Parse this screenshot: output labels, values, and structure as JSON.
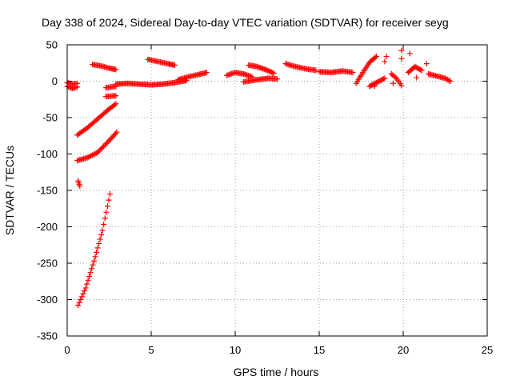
{
  "chart_data": {
    "type": "scatter",
    "title": "Day 338 of 2024, Sidereal Day-to-day VTEC variation (SDTVAR) for receiver seyg",
    "xlabel": "GPS time / hours",
    "ylabel": "SDTVAR / TECUs",
    "xlim": [
      0,
      25
    ],
    "ylim": [
      -350,
      50
    ],
    "xticks": [
      0,
      5,
      10,
      15,
      20,
      25
    ],
    "yticks": [
      -350,
      -300,
      -250,
      -200,
      -150,
      -100,
      -50,
      0,
      50
    ],
    "xtick_labels": [
      "0",
      "5",
      "10",
      "15",
      "20",
      "25"
    ],
    "ytick_labels": [
      "-350",
      "-300",
      "-250",
      "-200",
      "-150",
      "-100",
      "-50",
      "0",
      "50"
    ],
    "grid": true,
    "marker": "+",
    "color": "#ff0000",
    "segments": [
      {
        "x": [
          0.0,
          0.3,
          0.6
        ],
        "y": [
          -7,
          -10,
          -8
        ]
      },
      {
        "x": [
          0.0,
          0.3,
          0.6
        ],
        "y": [
          -2,
          -4,
          -3
        ]
      },
      {
        "x": [
          0.6,
          1.2,
          1.8,
          2.4,
          2.9
        ],
        "y": [
          -74,
          -64,
          -52,
          -40,
          -31
        ]
      },
      {
        "x": [
          0.6,
          1.2,
          1.8,
          2.4,
          2.95
        ],
        "y": [
          -109,
          -105,
          -98,
          -84,
          -70
        ]
      },
      {
        "x": [
          0.65,
          0.75
        ],
        "y": [
          -137,
          -144
        ]
      },
      {
        "x": [
          0.65,
          1.1,
          1.6,
          2.1,
          2.55
        ],
        "y": [
          -308,
          -284,
          -247,
          -205,
          -155
        ]
      },
      {
        "x": [
          1.5,
          2.0,
          2.5,
          2.9
        ],
        "y": [
          23,
          21,
          18,
          16
        ]
      },
      {
        "x": [
          2.3,
          2.9
        ],
        "y": [
          -9,
          -7
        ]
      },
      {
        "x": [
          2.3,
          2.9
        ],
        "y": [
          -21,
          -20
        ]
      },
      {
        "x": [
          2.9,
          3.6,
          4.3,
          5.0,
          5.7,
          6.4,
          7.1
        ],
        "y": [
          -4,
          -3,
          -4,
          -5,
          -4,
          -2,
          1
        ]
      },
      {
        "x": [
          4.8,
          5.4,
          6.0,
          6.4
        ],
        "y": [
          30,
          27,
          24,
          22
        ]
      },
      {
        "x": [
          6.6,
          7.2,
          7.8,
          8.3
        ],
        "y": [
          2,
          6,
          9,
          12
        ]
      },
      {
        "x": [
          9.5,
          10.0,
          10.5,
          11.0
        ],
        "y": [
          8,
          12,
          10,
          6
        ]
      },
      {
        "x": [
          10.8,
          11.3,
          11.8,
          12.3
        ],
        "y": [
          22,
          20,
          16,
          11
        ]
      },
      {
        "x": [
          10.5,
          11.3,
          12.0,
          12.5
        ],
        "y": [
          -1,
          2,
          4,
          3
        ]
      },
      {
        "x": [
          13.0,
          13.6,
          14.2,
          14.8
        ],
        "y": [
          24,
          20,
          17,
          15
        ]
      },
      {
        "x": [
          15.0,
          15.7,
          16.4,
          17.0
        ],
        "y": [
          13,
          12,
          14,
          12
        ]
      },
      {
        "x": [
          17.2,
          17.6,
          18.0,
          18.4
        ],
        "y": [
          -3,
          12,
          26,
          34
        ]
      },
      {
        "x": [
          18.0,
          18.4,
          18.9
        ],
        "y": [
          -7,
          -2,
          4
        ]
      },
      {
        "x": [
          19.3,
          19.6,
          19.9
        ],
        "y": [
          10,
          4,
          -6
        ]
      },
      {
        "x": [
          20.3,
          20.7,
          21.1
        ],
        "y": [
          12,
          20,
          15
        ]
      },
      {
        "x": [
          21.5,
          22.0,
          22.5,
          22.8
        ],
        "y": [
          10,
          7,
          4,
          0
        ]
      }
    ],
    "scattered_points": [
      {
        "x": 19.9,
        "y": 42
      },
      {
        "x": 19.9,
        "y": 31
      },
      {
        "x": 20.4,
        "y": 38
      },
      {
        "x": 18.9,
        "y": 27
      },
      {
        "x": 19.0,
        "y": 34
      },
      {
        "x": 21.4,
        "y": 24
      },
      {
        "x": 20.8,
        "y": 5
      },
      {
        "x": 19.4,
        "y": -3
      },
      {
        "x": 18.3,
        "y": -7
      }
    ]
  }
}
